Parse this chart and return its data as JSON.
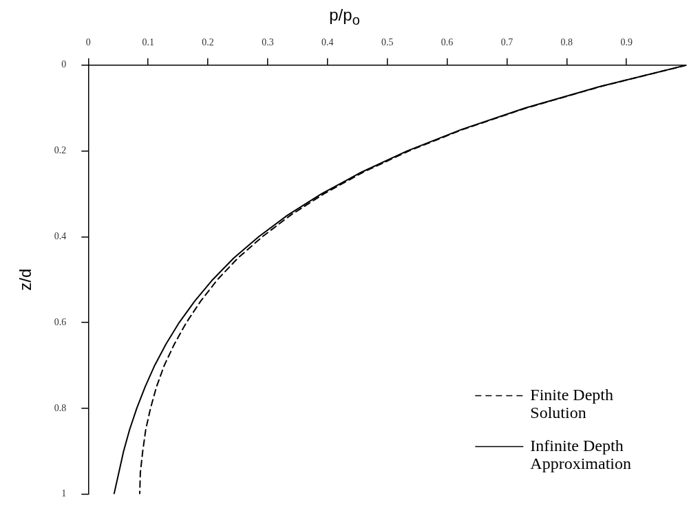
{
  "chart_data": {
    "type": "line",
    "xlabel": "p/p$_{o}$",
    "ylabel": "z/d",
    "xlim": [
      0,
      1
    ],
    "xticks": [
      0,
      0.1,
      0.2,
      0.3,
      0.4,
      0.5,
      0.6,
      0.7,
      0.8,
      0.9
    ],
    "ylim": [
      1,
      0
    ],
    "yticks": [
      0,
      0.2,
      0.4,
      0.6,
      0.8,
      1
    ],
    "grid": false,
    "legend": "bottom right",
    "marker": "none",
    "series": [
      {
        "name": "Finite Depth Solution",
        "color": "#000000",
        "line_style": "dashed",
        "x": [
          1,
          0.856,
          0.732,
          0.626,
          0.536,
          0.459,
          0.394,
          0.338,
          0.291,
          0.25,
          0.216,
          0.188,
          0.164,
          0.144,
          0.127,
          0.114,
          0.104,
          0.096,
          0.091,
          0.087,
          0.086
        ],
        "values": [
          0,
          0.05,
          0.1,
          0.15,
          0.2,
          0.25,
          0.3,
          0.35,
          0.4,
          0.45,
          0.5,
          0.55,
          0.6,
          0.65,
          0.7,
          0.75,
          0.8,
          0.85,
          0.9,
          0.95,
          1
        ]
      },
      {
        "name": "Infinite Depth Approximation",
        "color": "#000000",
        "line_style": "solid",
        "x": [
          1,
          0.855,
          0.73,
          0.624,
          0.533,
          0.456,
          0.39,
          0.333,
          0.285,
          0.243,
          0.208,
          0.178,
          0.152,
          0.13,
          0.111,
          0.095,
          0.081,
          0.069,
          0.059,
          0.051,
          0.043
        ],
        "values": [
          0,
          0.05,
          0.1,
          0.15,
          0.2,
          0.25,
          0.3,
          0.35,
          0.4,
          0.45,
          0.5,
          0.55,
          0.6,
          0.65,
          0.7,
          0.75,
          0.8,
          0.85,
          0.9,
          0.95,
          1
        ]
      }
    ]
  }
}
